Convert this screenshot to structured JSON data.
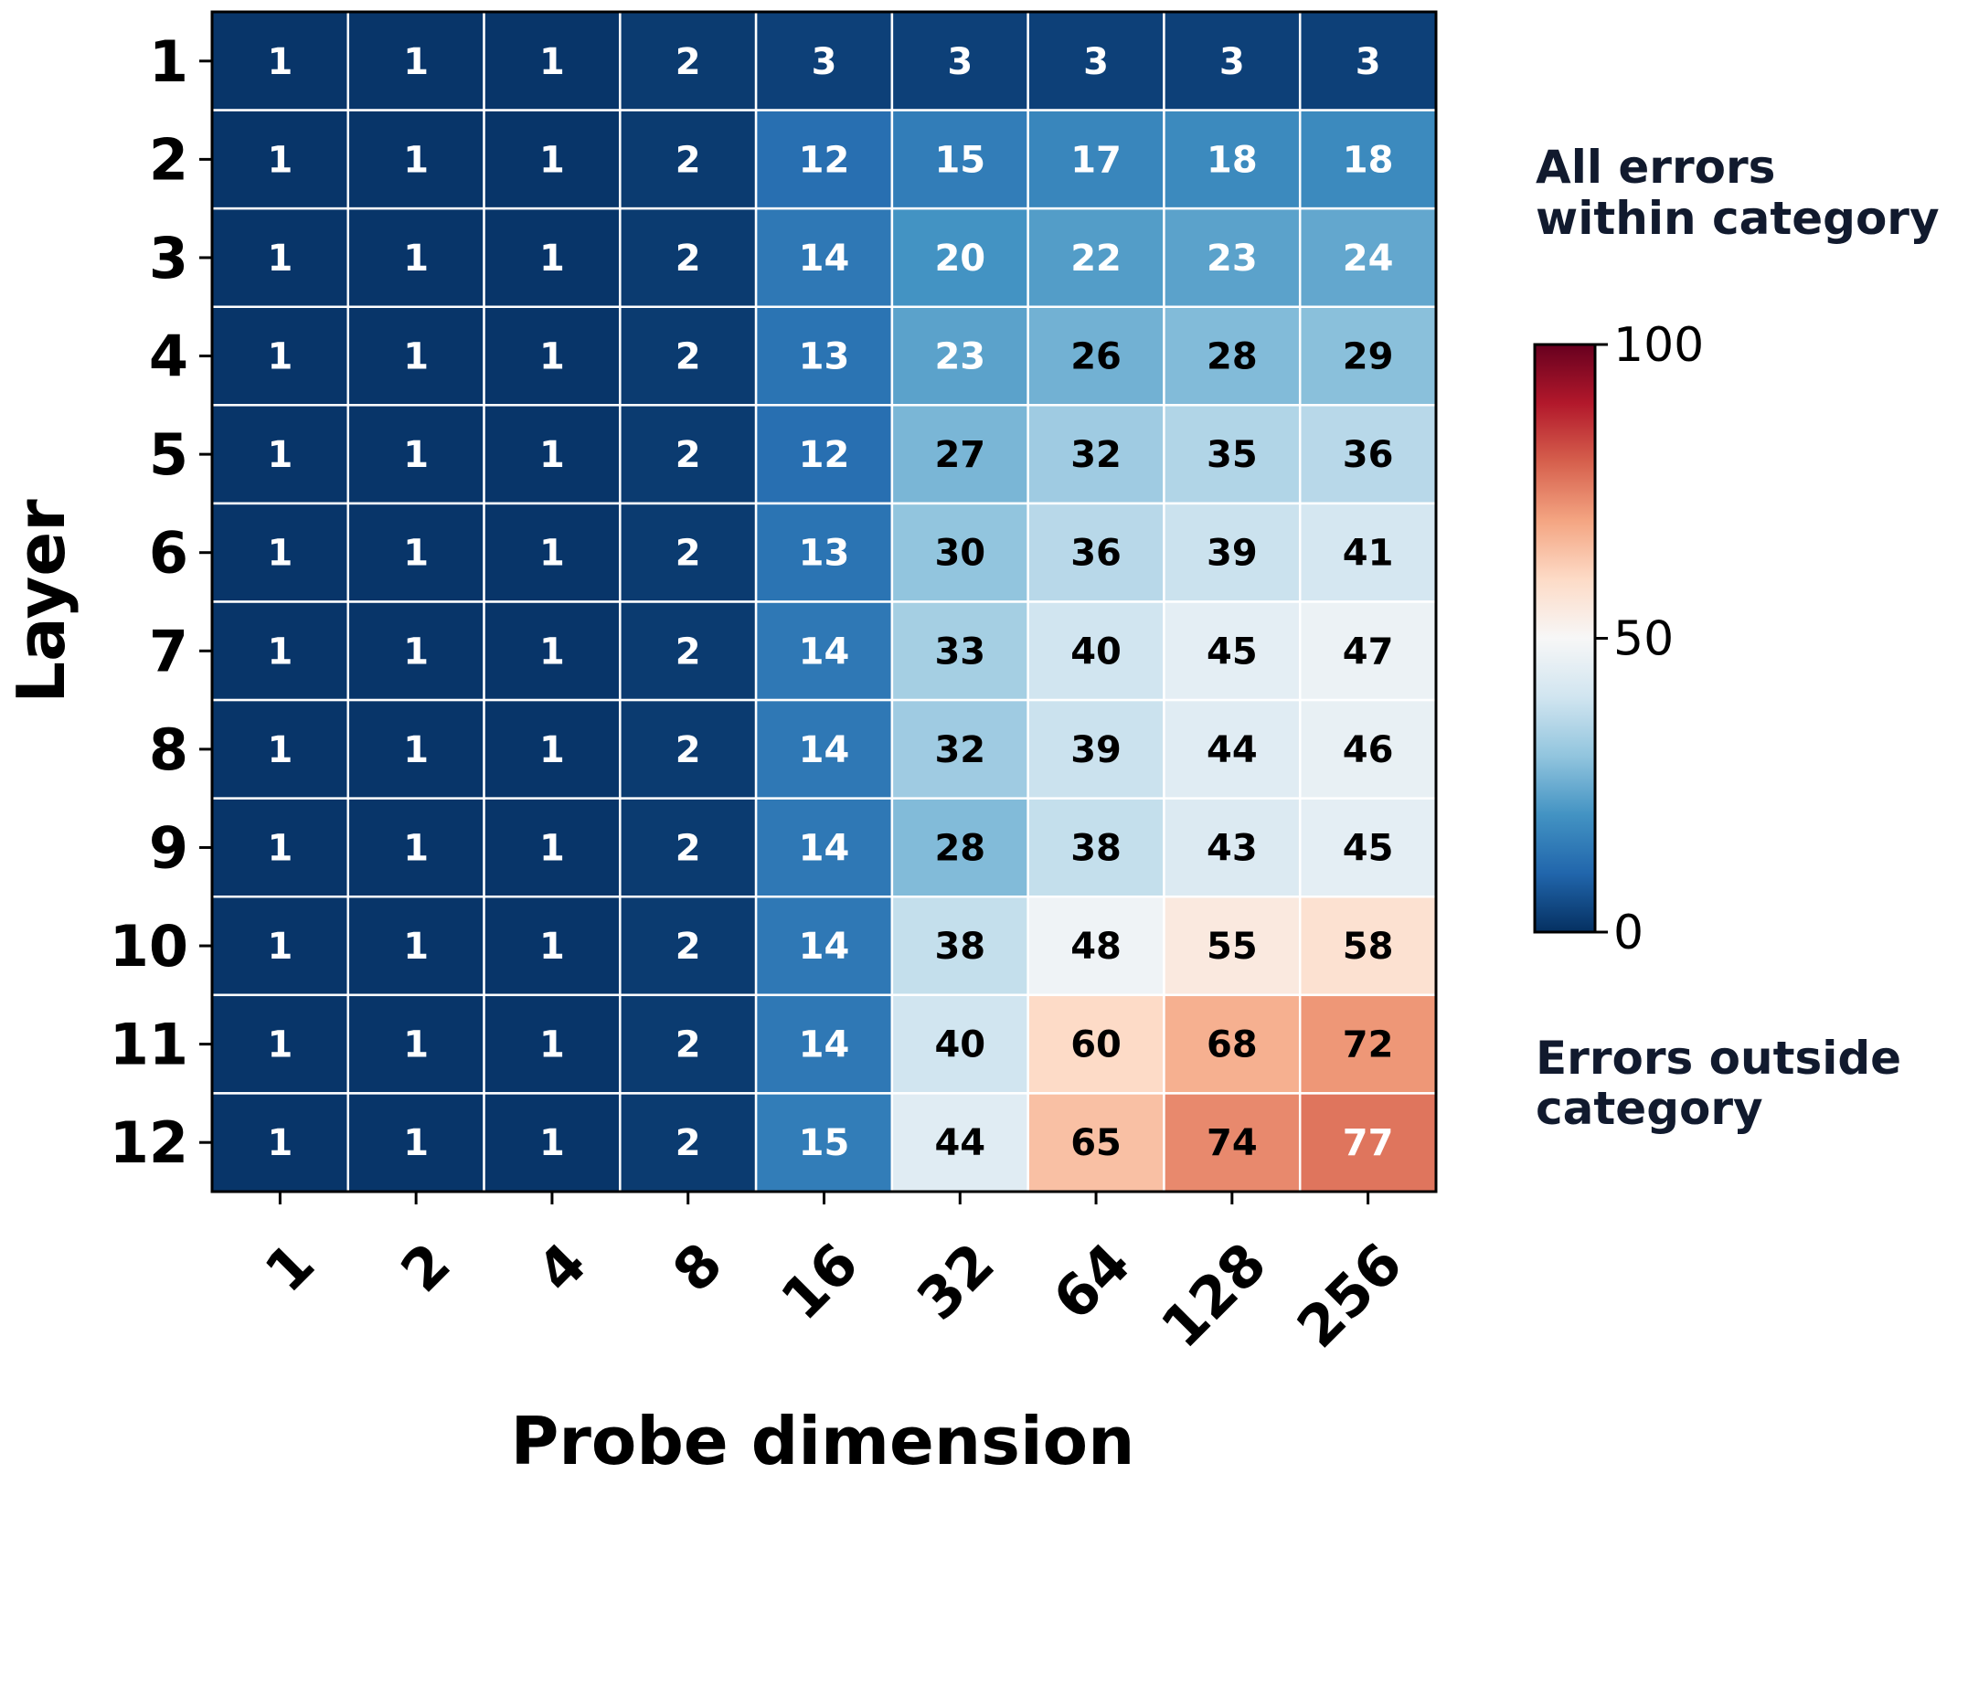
{
  "chart_data": {
    "type": "heatmap",
    "title": "",
    "xlabel": "Probe dimension",
    "ylabel": "Layer",
    "x_categories": [
      "1",
      "2",
      "4",
      "8",
      "16",
      "32",
      "64",
      "128",
      "256"
    ],
    "y_categories": [
      "1",
      "2",
      "3",
      "4",
      "5",
      "6",
      "7",
      "8",
      "9",
      "10",
      "11",
      "12"
    ],
    "values": [
      [
        1,
        1,
        1,
        2,
        3,
        3,
        3,
        3,
        3
      ],
      [
        1,
        1,
        1,
        2,
        12,
        15,
        17,
        18,
        18
      ],
      [
        1,
        1,
        1,
        2,
        14,
        20,
        22,
        23,
        24
      ],
      [
        1,
        1,
        1,
        2,
        13,
        23,
        26,
        28,
        29
      ],
      [
        1,
        1,
        1,
        2,
        12,
        27,
        32,
        35,
        36
      ],
      [
        1,
        1,
        1,
        2,
        13,
        30,
        36,
        39,
        41
      ],
      [
        1,
        1,
        1,
        2,
        14,
        33,
        40,
        45,
        47
      ],
      [
        1,
        1,
        1,
        2,
        14,
        32,
        39,
        44,
        46
      ],
      [
        1,
        1,
        1,
        2,
        14,
        28,
        38,
        43,
        45
      ],
      [
        1,
        1,
        1,
        2,
        14,
        38,
        48,
        55,
        58
      ],
      [
        1,
        1,
        1,
        2,
        14,
        40,
        60,
        68,
        72
      ],
      [
        1,
        1,
        1,
        2,
        15,
        44,
        65,
        74,
        77
      ]
    ],
    "colormap": "RdBu_r",
    "vmin": 0,
    "vmax": 100,
    "colorbar": {
      "ticks": [
        0,
        50,
        100
      ],
      "tick_labels": [
        "0",
        "50",
        "100"
      ],
      "label_top": [
        "All errors",
        "within category"
      ],
      "label_bottom": [
        "Errors outside",
        "category"
      ]
    },
    "grid": true
  }
}
